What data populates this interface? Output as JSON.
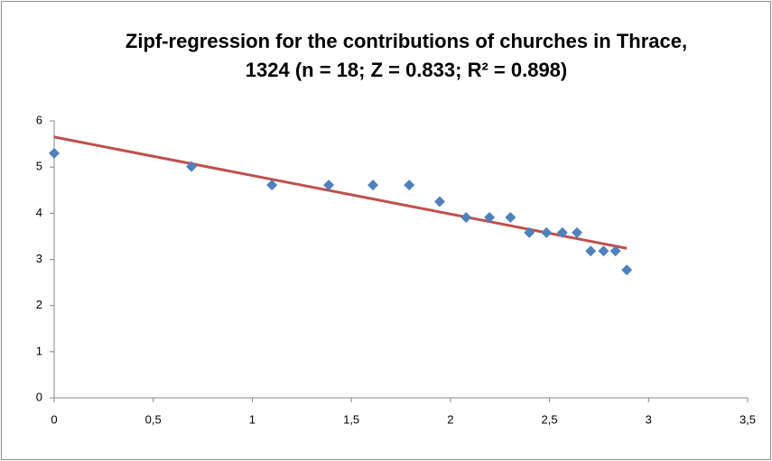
{
  "chart_data": {
    "type": "scatter",
    "title": "Zipf-regression for the contributions of churches in Thrace, 1324 (n = 18; Z = 0.833; R² = 0.898)",
    "x": [
      0,
      0.693,
      1.099,
      1.386,
      1.609,
      1.792,
      1.946,
      2.079,
      2.197,
      2.303,
      2.398,
      2.485,
      2.565,
      2.639,
      2.708,
      2.773,
      2.833,
      2.89
    ],
    "series": [
      {
        "color": "#4f81bd",
        "values": [
          5.3,
          5.01,
          4.61,
          4.61,
          4.61,
          4.61,
          4.25,
          3.91,
          3.91,
          3.91,
          3.58,
          3.58,
          3.58,
          3.58,
          3.18,
          3.18,
          3.18,
          2.77
        ]
      }
    ],
    "trendline": {
      "color": "#c0504d",
      "x": [
        0,
        2.89
      ],
      "values": [
        5.65,
        3.24
      ]
    },
    "xlim": [
      0,
      3.5
    ],
    "xticks": [
      0,
      {
        "value": 0.5,
        "label": "0,5"
      },
      1,
      {
        "value": 1.5,
        "label": "1,5"
      },
      2,
      {
        "value": 2.5,
        "label": "2,5"
      },
      3,
      {
        "value": 3.5,
        "label": "3,5"
      }
    ],
    "ylim": [
      0,
      6
    ],
    "yticks": [
      0,
      1,
      2,
      3,
      4,
      5,
      6
    ],
    "grid": false
  }
}
